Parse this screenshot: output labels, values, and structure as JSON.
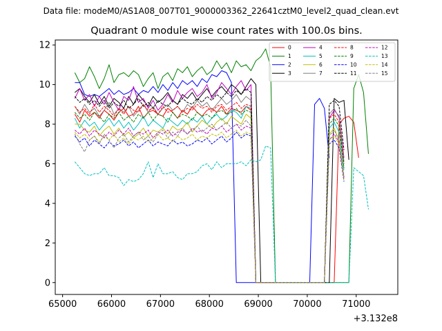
{
  "figure": {
    "suptitle": "Data file: modeM0/AS1A08_007T01_9000003362_22641cztM0_level2_quad_clean.evt"
  },
  "chart_data": {
    "type": "line",
    "title": "Quadrant 0 module wise count rates with 100.0s bins.",
    "xlabel": "",
    "ylabel": "",
    "x_offset_label": "+3.132e8",
    "xlim": [
      64850,
      71850
    ],
    "ylim": [
      -0.6,
      12.25
    ],
    "xticks": [
      65000,
      66000,
      67000,
      68000,
      69000,
      70000,
      71000
    ],
    "xtick_labels": [
      "65000",
      "66000",
      "67000",
      "68000",
      "69000",
      "70000",
      "71000"
    ],
    "yticks": [
      0,
      2,
      4,
      6,
      8,
      10,
      12
    ],
    "ytick_labels": [
      "0",
      "2",
      "4",
      "6",
      "8",
      "10",
      "12"
    ],
    "grid": false,
    "legend": {
      "placement": "top-right",
      "columns": 4
    },
    "x_start": 65250,
    "x_step": 100,
    "series": [
      {
        "name": "0",
        "color": "#ff0000",
        "dash": "solid",
        "values": [
          8.5,
          8.1,
          8.7,
          8.4,
          8.6,
          8.3,
          8.7,
          8.5,
          8.2,
          8.6,
          8.8,
          8.4,
          8.5,
          8.9,
          8.3,
          8.6,
          8.7,
          8.5,
          8.4,
          8.8,
          8.6,
          8.3,
          8.7,
          8.5,
          8.9,
          8.6,
          8.4,
          8.7,
          8.8,
          8.6,
          8.9,
          8.5,
          8.8,
          8.7,
          8.6,
          8.9,
          8.7,
          0,
          0,
          0,
          0,
          0,
          0,
          0,
          0,
          0,
          0,
          0,
          0,
          0,
          0,
          0,
          0,
          0,
          8.0,
          8.3,
          8.4,
          8.1,
          6.3
        ]
      },
      {
        "name": "1",
        "color": "#008000",
        "dash": "solid",
        "values": [
          10.6,
          10.1,
          10.3,
          10.9,
          10.4,
          9.8,
          10.3,
          11.0,
          10.1,
          10.5,
          10.6,
          10.4,
          10.7,
          10.5,
          9.9,
          10.3,
          10.6,
          9.8,
          10.4,
          10.6,
          10.2,
          10.8,
          10.6,
          10.9,
          10.4,
          10.7,
          10.9,
          10.5,
          10.7,
          11.2,
          10.8,
          11.1,
          10.6,
          11.2,
          10.9,
          11.0,
          10.7,
          11.2,
          11.4,
          11.8,
          10.9,
          0,
          0,
          0,
          0,
          0,
          0,
          0,
          0,
          0,
          0,
          0,
          0,
          0,
          0,
          0,
          0,
          9.8,
          10.5,
          9.6,
          6.5
        ]
      },
      {
        "name": "2",
        "color": "#0000ff",
        "dash": "solid",
        "values": [
          10.1,
          10.1,
          9.5,
          9.4,
          9.5,
          9.4,
          9.6,
          9.8,
          9.5,
          9.7,
          9.5,
          9.6,
          9.8,
          9.5,
          9.7,
          9.6,
          9.9,
          9.6,
          10.0,
          9.7,
          10.1,
          9.8,
          10.2,
          10.0,
          10.2,
          9.9,
          10.3,
          10.1,
          10.5,
          10.4,
          10.7,
          10.6,
          10.1,
          0,
          0,
          0,
          0,
          0,
          0,
          0,
          0,
          0,
          0,
          0,
          0,
          0,
          0,
          0,
          0,
          9.0,
          9.3,
          8.8,
          6.3
        ]
      },
      {
        "name": "3",
        "color": "#000000",
        "dash": "solid",
        "values": [
          9.6,
          9.8,
          9.4,
          9.1,
          9.5,
          9.0,
          9.4,
          8.9,
          9.3,
          9.1,
          8.8,
          9.4,
          9.0,
          9.5,
          9.2,
          8.9,
          9.4,
          9.1,
          9.3,
          9.6,
          9.2,
          9.0,
          9.5,
          9.3,
          9.6,
          9.2,
          9.5,
          9.8,
          9.4,
          9.7,
          9.9,
          9.6,
          10.0,
          9.8,
          9.5,
          9.9,
          10.3,
          10.0,
          0,
          0,
          0,
          0,
          0,
          0,
          0,
          0,
          0,
          0,
          0,
          0,
          0,
          0,
          0,
          9.3,
          9.1,
          9.2,
          6.2
        ]
      },
      {
        "name": "4",
        "color": "#bf00bf",
        "dash": "solid",
        "values": [
          9.3,
          9.8,
          9.2,
          9.5,
          8.9,
          9.4,
          9.0,
          9.6,
          9.1,
          8.7,
          9.4,
          9.2,
          9.9,
          9.1,
          9.3,
          8.8,
          9.2,
          8.7,
          9.0,
          9.5,
          9.1,
          9.7,
          9.3,
          9.6,
          9.8,
          9.4,
          9.6,
          10.0,
          9.3,
          9.6,
          10.1,
          9.8,
          9.5,
          9.9,
          10.2,
          9.7,
          10.0,
          0,
          0,
          0,
          0,
          0,
          0,
          0,
          0,
          0,
          0,
          0,
          0,
          0,
          0,
          0,
          8.3,
          8.7,
          8.4,
          6.3
        ]
      },
      {
        "name": "5",
        "color": "#00bfbf",
        "dash": "solid",
        "values": [
          8.3,
          7.8,
          8.2,
          7.9,
          8.1,
          7.7,
          8.0,
          8.3,
          7.9,
          8.2,
          7.8,
          8.1,
          7.7,
          8.0,
          8.4,
          7.9,
          8.2,
          8.0,
          7.8,
          8.3,
          8.1,
          7.9,
          8.2,
          8.0,
          8.3,
          8.1,
          8.4,
          8.0,
          8.3,
          8.5,
          8.2,
          8.4,
          8.7,
          8.6,
          8.3,
          8.9,
          8.8,
          0,
          0,
          0,
          0,
          0,
          0,
          0,
          0,
          0,
          0,
          0,
          0,
          0,
          0,
          0,
          7.8,
          8.1,
          7.6,
          5.7
        ]
      },
      {
        "name": "6",
        "color": "#bfbf00",
        "dash": "solid",
        "values": [
          8.0,
          8.0,
          7.7,
          7.6,
          7.9,
          7.4,
          7.7,
          7.9,
          7.5,
          7.8,
          7.4,
          7.6,
          7.3,
          7.5,
          7.8,
          7.4,
          7.7,
          7.6,
          7.8,
          7.5,
          7.9,
          7.7,
          7.8,
          8.1,
          7.6,
          7.9,
          8.2,
          8.0,
          7.8,
          8.1,
          8.3,
          8.0,
          8.4,
          8.2,
          8.0,
          8.5,
          8.3,
          0,
          0,
          0,
          0,
          0,
          0,
          0,
          0,
          0,
          0,
          0,
          0,
          0,
          0,
          0,
          7.5,
          7.8,
          7.2,
          5.3
        ]
      },
      {
        "name": "7",
        "color": "#7f7f7f",
        "dash": "solid",
        "values": [
          8.9,
          8.5,
          9.0,
          8.6,
          8.8,
          8.4,
          8.7,
          9.1,
          8.5,
          8.8,
          8.6,
          8.9,
          8.4,
          8.7,
          9.0,
          8.6,
          8.9,
          8.5,
          8.8,
          9.0,
          8.7,
          8.9,
          8.6,
          9.0,
          8.8,
          9.2,
          8.9,
          9.1,
          8.7,
          9.0,
          9.3,
          9.0,
          9.2,
          9.5,
          9.1,
          9.4,
          9.2,
          0,
          0,
          0,
          0,
          0,
          0,
          0,
          0,
          0,
          0,
          0,
          0,
          0,
          0,
          0,
          8.5,
          8.8,
          8.3,
          6.1
        ]
      },
      {
        "name": "8",
        "color": "#ff0000",
        "dash": "dashed",
        "values": [
          8.9,
          8.6,
          8.8,
          8.5,
          9.0,
          8.6,
          8.9,
          8.7,
          8.4,
          8.8,
          8.5,
          8.9,
          8.7,
          8.6,
          9.0,
          8.7,
          8.8,
          8.5,
          8.9,
          8.6,
          8.7,
          8.9,
          8.6,
          8.8,
          8.7,
          9.0,
          8.8,
          8.9,
          8.6,
          8.9,
          9.0,
          8.7,
          8.9,
          9.1,
          8.8,
          9.0,
          8.9,
          0,
          0,
          0,
          0,
          0,
          0,
          0,
          0,
          0,
          0,
          0,
          0,
          0,
          0,
          0,
          8.3,
          8.5,
          8.1,
          6.0
        ]
      },
      {
        "name": "9",
        "color": "#008000",
        "dash": "dashed",
        "values": [
          8.6,
          8.3,
          8.5,
          8.2,
          8.6,
          8.4,
          8.1,
          8.5,
          8.3,
          8.6,
          8.2,
          8.4,
          8.1,
          8.5,
          8.3,
          8.6,
          8.2,
          8.5,
          8.4,
          8.1,
          8.6,
          8.3,
          8.5,
          8.4,
          8.2,
          8.6,
          8.4,
          8.5,
          8.3,
          8.6,
          8.7,
          8.5,
          8.6,
          8.8,
          8.5,
          8.7,
          8.6,
          0,
          0,
          0,
          0,
          0,
          0,
          0,
          0,
          0,
          0,
          0,
          0,
          0,
          0,
          0,
          8.0,
          8.3,
          7.9,
          5.8
        ]
      },
      {
        "name": "10",
        "color": "#0000ff",
        "dash": "dashed",
        "values": [
          7.4,
          7.1,
          7.3,
          6.9,
          7.2,
          7.0,
          6.8,
          7.1,
          6.9,
          7.0,
          7.2,
          6.9,
          7.1,
          6.8,
          7.0,
          7.2,
          6.9,
          7.1,
          7.0,
          6.9,
          7.2,
          7.0,
          7.1,
          6.9,
          7.0,
          7.2,
          7.1,
          7.3,
          7.0,
          7.2,
          7.4,
          7.1,
          7.3,
          7.6,
          7.3,
          7.5,
          7.4,
          0,
          0,
          0,
          0,
          0,
          0,
          0,
          0,
          0,
          0,
          0,
          0,
          0,
          0,
          0,
          7.0,
          7.2,
          6.8,
          5.1
        ]
      },
      {
        "name": "11",
        "color": "#000000",
        "dash": "dashed",
        "values": [
          9.4,
          9.1,
          9.3,
          9.0,
          9.2,
          8.9,
          9.2,
          8.8,
          9.1,
          8.9,
          9.2,
          8.8,
          9.0,
          9.3,
          8.9,
          9.1,
          8.8,
          9.2,
          9.0,
          8.9,
          9.2,
          9.0,
          9.3,
          9.1,
          9.0,
          9.3,
          9.1,
          9.4,
          9.2,
          9.5,
          9.3,
          9.6,
          9.4,
          9.7,
          9.5,
          9.8,
          9.6,
          0,
          0,
          0,
          0,
          0,
          0,
          0,
          0,
          0,
          0,
          0,
          0,
          0,
          0,
          0,
          9.0,
          9.2,
          8.9,
          6.7
        ]
      },
      {
        "name": "12",
        "color": "#bf00bf",
        "dash": "dashed",
        "values": [
          7.7,
          7.5,
          7.8,
          7.4,
          7.7,
          7.5,
          7.3,
          7.6,
          7.4,
          7.7,
          7.5,
          7.8,
          7.4,
          7.6,
          7.5,
          7.7,
          7.3,
          7.6,
          7.5,
          7.7,
          7.4,
          7.6,
          7.7,
          7.5,
          7.8,
          7.6,
          7.7,
          7.5,
          7.8,
          7.7,
          7.9,
          7.6,
          7.8,
          8.0,
          7.7,
          7.9,
          7.8,
          0,
          0,
          0,
          0,
          0,
          0,
          0,
          0,
          0,
          0,
          0,
          0,
          0,
          0,
          0,
          7.2,
          7.5,
          7.1,
          5.3
        ]
      },
      {
        "name": "13",
        "color": "#00bfbf",
        "dash": "dashed",
        "values": [
          6.1,
          5.8,
          5.5,
          5.4,
          5.5,
          5.5,
          5.8,
          5.4,
          5.4,
          5.3,
          4.9,
          5.2,
          5.1,
          5.2,
          5.5,
          6.1,
          5.3,
          6.0,
          5.5,
          5.5,
          5.6,
          5.3,
          5.2,
          5.5,
          5.5,
          5.6,
          5.9,
          6.0,
          5.7,
          6.1,
          5.8,
          6.0,
          6.0,
          6.0,
          6.1,
          5.9,
          6.2,
          6.1,
          6.2,
          6.9,
          6.8,
          0,
          0,
          0,
          0,
          0,
          0,
          0,
          0,
          0,
          0,
          0,
          0,
          0,
          0,
          0,
          0,
          5.8,
          5.6,
          5.4,
          3.7
        ]
      },
      {
        "name": "14",
        "color": "#bfbf00",
        "dash": "dashed",
        "values": [
          7.6,
          7.3,
          7.5,
          7.2,
          7.4,
          7.1,
          7.4,
          7.2,
          7.5,
          7.1,
          7.3,
          7.0,
          7.3,
          7.2,
          7.4,
          7.1,
          7.3,
          7.5,
          7.2,
          7.3,
          7.1,
          7.4,
          7.2,
          7.3,
          7.5,
          7.2,
          7.4,
          7.3,
          7.5,
          7.4,
          7.6,
          7.3,
          7.5,
          7.7,
          7.4,
          7.6,
          7.5,
          0,
          0,
          0,
          0,
          0,
          0,
          0,
          0,
          0,
          0,
          0,
          0,
          0,
          0,
          0,
          7.2,
          7.4,
          7.0,
          5.2
        ]
      },
      {
        "name": "15",
        "color": "#7f7f7f",
        "dash": "dashed",
        "values": [
          7.5,
          7.0,
          6.6,
          7.2,
          7.4,
          7.0,
          7.5,
          7.2,
          6.8,
          7.3,
          7.5,
          7.1,
          7.4,
          7.6,
          7.2,
          7.4,
          7.1,
          7.5,
          7.7,
          7.3,
          7.6,
          7.4,
          7.8,
          7.5,
          7.7,
          7.9,
          7.6,
          7.8,
          8.0,
          7.7,
          7.9,
          8.1,
          7.8,
          8.0,
          7.9,
          8.2,
          7.9,
          0,
          0,
          0,
          0,
          0,
          0,
          0,
          0,
          0,
          0,
          0,
          0,
          0,
          0,
          0,
          7.4,
          7.7,
          7.2,
          5.4
        ]
      }
    ]
  }
}
